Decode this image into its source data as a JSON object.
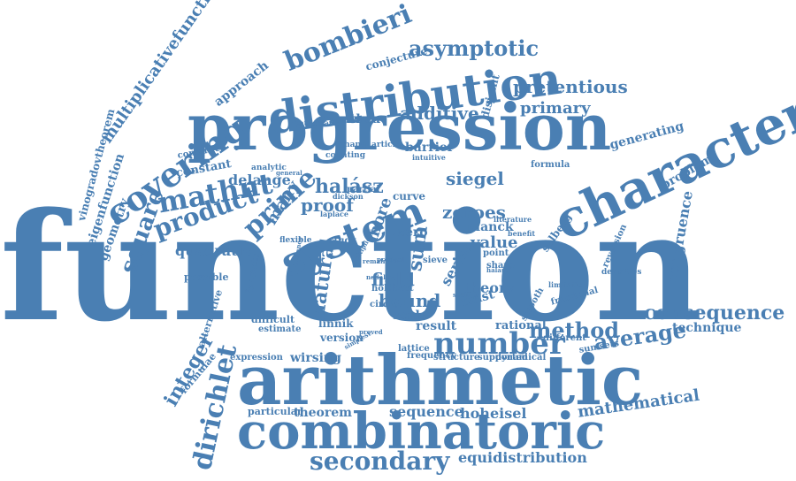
{
  "color": "#4a7fb3",
  "words": [
    "function",
    "arithmetic",
    "progression",
    "combinatoric",
    "character",
    "distribution",
    "covering",
    "system",
    "number",
    "secondary",
    "dirichlet",
    "prime",
    "mathnt",
    "square",
    "product",
    "consequence",
    "method",
    "average",
    "asymptotic",
    "bombieri",
    "integer",
    "pretentious",
    "additive",
    "primary",
    "halász",
    "sum",
    "natural",
    "mathematical",
    "multiplicativefunction",
    "geometry",
    "eigenfunction",
    "vinogradovtheorem",
    "approach",
    "quadratic",
    "siegel",
    "zeroes",
    "proof",
    "delange",
    "constant",
    "construct",
    "field",
    "bound",
    "theory",
    "value",
    "series",
    "congruence",
    "problem",
    "generating",
    "formula",
    "technique",
    "selberg",
    "rational",
    "fractional",
    "different",
    "reversion",
    "densities",
    "sequence",
    "hoheisel",
    "theorem",
    "particular",
    "equidistribution",
    "wirsing",
    "expression",
    "alternative",
    "possible",
    "formulae",
    "fermats",
    "difficult",
    "estimate",
    "linnik",
    "version",
    "result",
    "scale",
    "circle",
    "more",
    "many",
    "planck",
    "twist",
    "zero",
    "barrier",
    "article",
    "zhang",
    "counting",
    "partial",
    "mathca",
    "conjecture",
    "disjoint",
    "mathematic",
    "analytic",
    "study",
    "flexible",
    "curve",
    "frequency",
    "structure",
    "supported",
    "dynamical",
    "sumsets",
    "smooth",
    "limitation",
    "best",
    "hold",
    "point",
    "sharp",
    "lattice",
    "sieve",
    "literature",
    "benefit",
    "intuitive",
    "laplace",
    "dickson",
    "halasz",
    "remainder",
    "multiplicative",
    "nodal",
    "simplest",
    "instance",
    "precisely",
    "setting",
    "general",
    "proved"
  ]
}
